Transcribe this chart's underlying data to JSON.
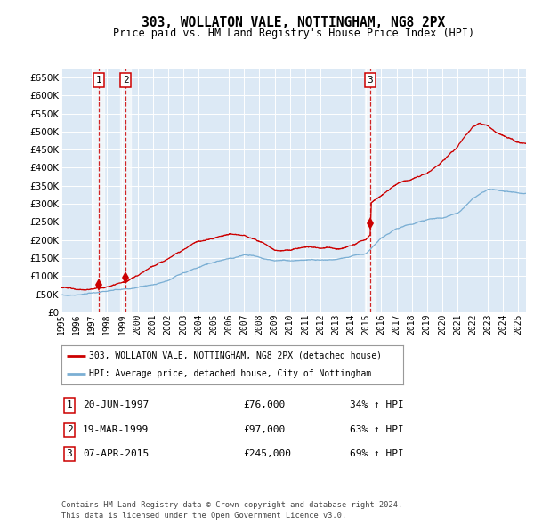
{
  "title": "303, WOLLATON VALE, NOTTINGHAM, NG8 2PX",
  "subtitle": "Price paid vs. HM Land Registry's House Price Index (HPI)",
  "legend_line1": "303, WOLLATON VALE, NOTTINGHAM, NG8 2PX (detached house)",
  "legend_line2": "HPI: Average price, detached house, City of Nottingham",
  "footer1": "Contains HM Land Registry data © Crown copyright and database right 2024.",
  "footer2": "This data is licensed under the Open Government Licence v3.0.",
  "transactions": [
    {
      "num": 1,
      "date": "20-JUN-1997",
      "price": 76000,
      "change": "34% ↑ HPI",
      "year": 1997.47
    },
    {
      "num": 2,
      "date": "19-MAR-1999",
      "price": 97000,
      "change": "63% ↑ HPI",
      "year": 1999.21
    },
    {
      "num": 3,
      "date": "07-APR-2015",
      "price": 245000,
      "change": "69% ↑ HPI",
      "year": 2015.27
    }
  ],
  "hpi_color": "#7bafd4",
  "price_color": "#cc0000",
  "vline_color": "#cc0000",
  "plot_bg_color": "#dce9f5",
  "grid_color": "#ffffff",
  "ylim": [
    0,
    675000
  ],
  "xlim_start": 1995.0,
  "xlim_end": 2025.5,
  "yticks": [
    0,
    50000,
    100000,
    150000,
    200000,
    250000,
    300000,
    350000,
    400000,
    450000,
    500000,
    550000,
    600000,
    650000
  ],
  "hpi_anchors_x": [
    1995,
    1996,
    1997,
    1998,
    1999,
    2000,
    2001,
    2002,
    2003,
    2004,
    2005,
    2006,
    2007,
    2008,
    2009,
    2010,
    2011,
    2012,
    2013,
    2014,
    2015,
    2016,
    2017,
    2018,
    2019,
    2020,
    2021,
    2022,
    2023,
    2024,
    2025.5
  ],
  "hpi_anchors_y": [
    48000,
    50000,
    54000,
    58000,
    63000,
    70000,
    78000,
    88000,
    105000,
    118000,
    130000,
    140000,
    148000,
    140000,
    128000,
    128000,
    130000,
    130000,
    132000,
    140000,
    148000,
    190000,
    215000,
    225000,
    240000,
    245000,
    260000,
    300000,
    325000,
    320000,
    310000
  ],
  "price_anchors_x": [
    1995,
    1996,
    1997.3,
    1997.47,
    1997.6,
    1998,
    1999.0,
    1999.21,
    1999.5,
    2000,
    2001,
    2002,
    2003,
    2004,
    2005,
    2006,
    2007,
    2007.5,
    2008,
    2009,
    2010,
    2011,
    2012,
    2013,
    2014,
    2015.0,
    2015.27,
    2015.35,
    2016,
    2017,
    2018,
    2019,
    2020,
    2021,
    2021.5,
    2022,
    2022.5,
    2023,
    2023.5,
    2024,
    2025,
    2025.5
  ],
  "price_anchors_y": [
    68000,
    70000,
    74000,
    76000,
    77000,
    80000,
    93000,
    97000,
    105000,
    118000,
    148000,
    168000,
    193000,
    218000,
    228000,
    237000,
    232000,
    225000,
    215000,
    195000,
    198000,
    205000,
    205000,
    210000,
    218000,
    232000,
    245000,
    335000,
    355000,
    385000,
    405000,
    420000,
    455000,
    498000,
    530000,
    555000,
    562000,
    555000,
    540000,
    530000,
    510000,
    505000
  ]
}
